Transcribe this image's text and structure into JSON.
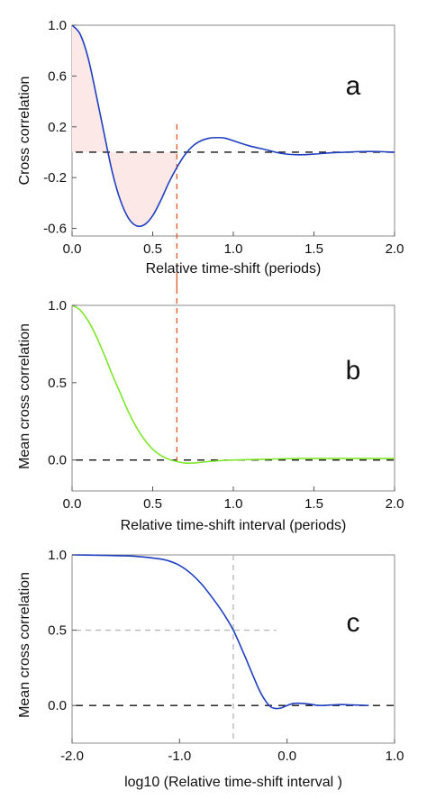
{
  "chart_data": [
    {
      "type": "line",
      "panel_label": "a",
      "xlabel": "Relative time-shift (periods)",
      "ylabel": "Cross correlation",
      "xlim": [
        0,
        2.0
      ],
      "ylim": [
        -0.66,
        1.0
      ],
      "x_ticks": [
        0.0,
        0.5,
        1.0,
        1.5,
        2.0
      ],
      "x_tick_labels": [
        "0.0",
        "0.5",
        "1.0",
        "1.5",
        "2.0"
      ],
      "y_ticks": [
        1.0,
        0.6,
        0.2,
        -0.2,
        -0.6
      ],
      "y_tick_labels": [
        "1.0",
        "0.6",
        "0.2",
        "-0.2",
        "-0.6"
      ],
      "grid": false,
      "series": [
        {
          "color": "#1f3fbf",
          "x": [
            0.0,
            0.05,
            0.1,
            0.15,
            0.2,
            0.25,
            0.3,
            0.35,
            0.4,
            0.45,
            0.5,
            0.55,
            0.6,
            0.65,
            0.7,
            0.75,
            0.8,
            0.85,
            0.9,
            0.95,
            1.0,
            1.1,
            1.2,
            1.3,
            1.4,
            1.5,
            1.6,
            1.7,
            1.8,
            1.9,
            2.0
          ],
          "y": [
            1.0,
            0.93,
            0.74,
            0.45,
            0.14,
            -0.16,
            -0.38,
            -0.52,
            -0.58,
            -0.57,
            -0.5,
            -0.38,
            -0.24,
            -0.12,
            -0.02,
            0.05,
            0.09,
            0.11,
            0.115,
            0.11,
            0.09,
            0.05,
            0.02,
            -0.01,
            -0.02,
            -0.015,
            -0.005,
            0.0,
            0.005,
            0.005,
            0.0
          ]
        }
      ],
      "shaded_region": {
        "x_from": 0.0,
        "x_to": 0.65,
        "color": "#fde8e8"
      },
      "reference_lines": [
        {
          "orientation": "horizontal",
          "value": 0.0,
          "style": "dashed",
          "color": "#111111"
        },
        {
          "orientation": "vertical",
          "value": 0.65,
          "style": "dashed",
          "color": "#e05a2a"
        }
      ]
    },
    {
      "type": "line",
      "panel_label": "b",
      "xlabel": "Relative time-shift interval (periods)",
      "ylabel": "Mean cross correlation",
      "xlim": [
        0,
        2.0
      ],
      "ylim": [
        -0.2,
        1.0
      ],
      "x_ticks": [
        0.0,
        0.5,
        1.0,
        1.5,
        2.0
      ],
      "x_tick_labels": [
        "0.0",
        "0.5",
        "1.0",
        "1.5",
        "2.0"
      ],
      "y_ticks": [
        1.0,
        0.5,
        0.0
      ],
      "y_tick_labels": [
        "1.0",
        "0.5",
        "0.0"
      ],
      "grid": false,
      "series": [
        {
          "color": "#7ee62a",
          "x": [
            0.0,
            0.05,
            0.1,
            0.15,
            0.2,
            0.25,
            0.3,
            0.35,
            0.4,
            0.45,
            0.5,
            0.55,
            0.6,
            0.65,
            0.7,
            0.75,
            0.8,
            0.9,
            1.0,
            1.2,
            1.4,
            1.6,
            1.8,
            2.0
          ],
          "y": [
            1.0,
            0.97,
            0.9,
            0.8,
            0.68,
            0.55,
            0.43,
            0.31,
            0.21,
            0.13,
            0.07,
            0.03,
            0.005,
            -0.01,
            -0.02,
            -0.02,
            -0.015,
            -0.005,
            0.0,
            0.005,
            0.01,
            0.01,
            0.01,
            0.01
          ]
        }
      ],
      "reference_lines": [
        {
          "orientation": "horizontal",
          "value": 0.0,
          "style": "dashed",
          "color": "#111111"
        },
        {
          "orientation": "vertical",
          "value": 0.65,
          "style": "dashed",
          "color": "#e05a2a"
        }
      ]
    },
    {
      "type": "line",
      "panel_label": "c",
      "xlabel": "log10 (Relative time-shift interval )",
      "ylabel": "Mean cross correlation",
      "xlim": [
        -2.0,
        1.0
      ],
      "ylim": [
        -0.25,
        1.0
      ],
      "x_ticks": [
        -2.0,
        -1.0,
        0.0,
        1.0
      ],
      "x_tick_labels": [
        "-2.0",
        "-1.0",
        "0.0",
        "1.0"
      ],
      "y_ticks": [
        1.0,
        0.5,
        0.0
      ],
      "y_tick_labels": [
        "1.0",
        "0.5",
        "0.0"
      ],
      "grid": false,
      "series": [
        {
          "color": "#1f3fbf",
          "x": [
            -2.0,
            -1.8,
            -1.6,
            -1.4,
            -1.2,
            -1.1,
            -1.0,
            -0.9,
            -0.8,
            -0.7,
            -0.6,
            -0.5,
            -0.4,
            -0.3,
            -0.25,
            -0.2,
            -0.15,
            -0.1,
            -0.05,
            0.0,
            0.05,
            0.1,
            0.2,
            0.3,
            0.4,
            0.5,
            0.6,
            0.7,
            0.76
          ],
          "y": [
            1.0,
            0.998,
            0.995,
            0.99,
            0.975,
            0.96,
            0.93,
            0.88,
            0.81,
            0.72,
            0.62,
            0.5,
            0.34,
            0.17,
            0.09,
            0.03,
            -0.01,
            -0.02,
            -0.015,
            0.0,
            0.012,
            0.015,
            0.01,
            0.0,
            0.003,
            0.006,
            0.004,
            0.002,
            0.0
          ]
        }
      ],
      "reference_lines": [
        {
          "orientation": "horizontal",
          "value": 0.0,
          "style": "dashed",
          "color": "#111111"
        },
        {
          "orientation": "vertical",
          "value": -0.5,
          "style": "dashed",
          "color": "#b5b5b5",
          "y_to": 1.0
        },
        {
          "orientation": "horizontal",
          "value": 0.5,
          "style": "dashed",
          "color": "#b5b5b5",
          "x_to": -0.1
        }
      ]
    }
  ]
}
